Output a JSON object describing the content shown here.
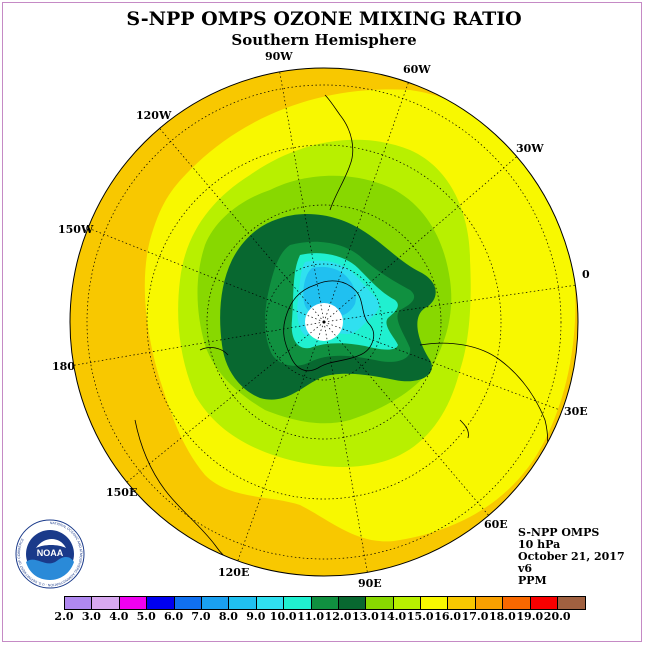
{
  "title": "S-NPP OMPS OZONE MIXING RATIO",
  "subtitle": "Southern Hemisphere",
  "longitude_labels": [
    "90W",
    "60W",
    "30W",
    "0",
    "30E",
    "60E",
    "90E",
    "120E",
    "150E",
    "180",
    "150W",
    "120W"
  ],
  "info": {
    "instrument": "S-NPP OMPS",
    "level": "10 hPa",
    "date": "October 21, 2017",
    "version": "v6",
    "units": "PPM"
  },
  "logo": {
    "text": "NOAA",
    "ring_text": "NATIONAL OCEANIC AND ATMOSPHERIC ADMINISTRATION · U.S. DEPARTMENT OF COMMERCE"
  },
  "colorbar": {
    "labels": [
      "2.0",
      "3.0",
      "4.0",
      "5.0",
      "6.0",
      "7.0",
      "8.0",
      "9.0",
      "10.0",
      "11.0",
      "12.0",
      "13.0",
      "14.0",
      "15.0",
      "16.0",
      "17.0",
      "18.0",
      "19.0",
      "20.0"
    ],
    "colors": [
      "#b088f0",
      "#d8a8f0",
      "#f000f0",
      "#0000f0",
      "#1070f0",
      "#1aa0f0",
      "#20c0f0",
      "#30e0f0",
      "#20f0d0",
      "#109040",
      "#086830",
      "#88d800",
      "#b8f000",
      "#f8f800",
      "#f8c800",
      "#f8a000",
      "#f86800",
      "#f80000",
      "#a06040"
    ]
  },
  "map": {
    "ocean_color": "#f8f800",
    "outer_color": "#f8c800"
  }
}
